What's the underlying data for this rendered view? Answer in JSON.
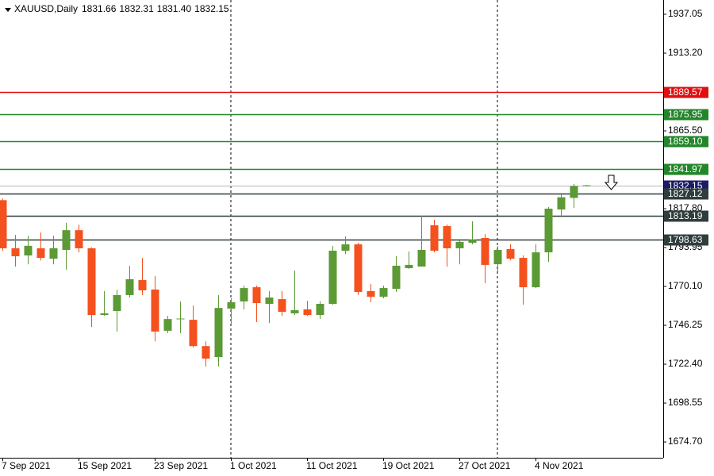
{
  "chart_data": {
    "type": "candlestick",
    "title": "XAUUSD,Daily",
    "ohlc_text": [
      "1831.66",
      "1832.31",
      "1831.40",
      "1832.15"
    ],
    "categories": [
      "7 Sep 2021",
      null,
      null,
      null,
      null,
      null,
      "15 Sep 2021",
      null,
      null,
      null,
      null,
      null,
      "23 Sep 2021",
      null,
      null,
      null,
      null,
      null,
      "1 Oct 2021",
      null,
      null,
      null,
      null,
      null,
      "11 Oct 2021",
      null,
      null,
      null,
      null,
      null,
      "19 Oct 2021",
      null,
      null,
      null,
      null,
      null,
      "27 Oct 2021",
      null,
      null,
      null,
      null,
      null,
      "4 Nov 2021",
      null,
      null,
      null,
      null
    ],
    "open": [
      1823,
      1793.5,
      1789.1,
      1793.5,
      1787.1,
      1792.5,
      1804.6,
      1793.5,
      1752.6,
      1755,
      1764.8,
      1774,
      1768.2,
      1742.9,
      1750,
      1749.6,
      1733.5,
      1726.8,
      1756.5,
      1760.9,
      1769.6,
      1759.4,
      1762.3,
      1753.6,
      1756,
      1752.6,
      1759.4,
      1792,
      1795.9,
      1767.2,
      1763.8,
      1768.6,
      1781.3,
      1782.3,
      1807.6,
      1807.1,
      1793.5,
      1796.9,
      1799.8,
      1783.7,
      1793,
      1787.6,
      1769.6,
      1791,
      1817.3,
      1824.4,
      1831.66
    ],
    "high": [
      1824,
      1801.7,
      1801.2,
      1803.2,
      1801.2,
      1809.1,
      1808,
      1794,
      1767.2,
      1768.2,
      1782.8,
      1787.6,
      1776.4,
      1752,
      1760.8,
      1758.4,
      1736.5,
      1764.7,
      1762.8,
      1770.6,
      1770.6,
      1767.2,
      1767.2,
      1779.9,
      1761.3,
      1761,
      1794.9,
      1800.8,
      1796.9,
      1771.6,
      1770.6,
      1788.6,
      1791.5,
      1813.4,
      1811,
      1808.1,
      1798.4,
      1810,
      1802.2,
      1794.9,
      1795.9,
      1789.1,
      1795.9,
      1818.8,
      1826.5,
      1832.9,
      1832.31
    ],
    "low": [
      1792,
      1782.3,
      1783.7,
      1786,
      1783.7,
      1780.3,
      1791,
      1745.2,
      1752,
      1742.4,
      1763.3,
      1764.8,
      1736.5,
      1741.4,
      1741.4,
      1732.6,
      1721,
      1721,
      1747.2,
      1756,
      1748.2,
      1747.7,
      1752,
      1752.6,
      1752,
      1750.1,
      1758.9,
      1790,
      1764.8,
      1760.4,
      1762.8,
      1766.7,
      1780.8,
      1782.3,
      1791,
      1782.3,
      1783.7,
      1795.9,
      1772.1,
      1777.9,
      1786.1,
      1758.9,
      1769.1,
      1785.2,
      1812.5,
      1818.2,
      1831.4
    ],
    "close": [
      1793.5,
      1788.6,
      1795,
      1787.6,
      1793.5,
      1804.6,
      1793.5,
      1752.6,
      1753.6,
      1764.8,
      1774.5,
      1767.7,
      1742.4,
      1750.1,
      1750.4,
      1733.5,
      1725.8,
      1756.9,
      1760.4,
      1769.1,
      1759.9,
      1763.3,
      1754.5,
      1755.5,
      1752.6,
      1759.4,
      1792,
      1795.9,
      1766.7,
      1763.8,
      1769.1,
      1782.8,
      1783.3,
      1792.5,
      1792,
      1793.5,
      1797.4,
      1798.9,
      1783.3,
      1792.5,
      1787.1,
      1769.6,
      1791,
      1817.8,
      1824.8,
      1831.7,
      1832.15
    ],
    "up_color": "#5b9a34",
    "down_color": "#f4511e",
    "ylim": [
      1665,
      1945.8
    ],
    "yticks": [
      1937.05,
      {
        "value": 1913.2,
        "label": "1913.20"
      },
      {
        "value": 1865.5,
        "label": "1865.50"
      },
      {
        "value": 1817.8,
        "label": "1817.80"
      },
      1793.95,
      {
        "value": 1770.1,
        "label": "1770.10"
      },
      1746.25,
      {
        "value": 1722.4,
        "label": "1722.40"
      },
      1698.55,
      {
        "value": 1674.7,
        "label": "1674.70"
      }
    ],
    "levels": [
      {
        "value": 1889.57,
        "label": "1889.57",
        "color": "#e01010"
      },
      {
        "value": 1875.95,
        "label": "1875.95",
        "color": "#23862a"
      },
      {
        "value": 1859.1,
        "label": "1859.10",
        "color": "#23862a"
      },
      {
        "value": 1841.97,
        "label": "1841.97",
        "color": "#23862a"
      },
      {
        "value": 1832.15,
        "label": "1832.15",
        "color": "#1c1c66"
      },
      {
        "value": 1827.12,
        "label": "1827.12",
        "color": "#2f3d3d"
      },
      {
        "value": 1813.19,
        "label": "1813.19",
        "color": "#2f3d3d"
      },
      {
        "value": 1798.63,
        "label": "1798.63",
        "color": "#2f3d3d"
      }
    ]
  }
}
